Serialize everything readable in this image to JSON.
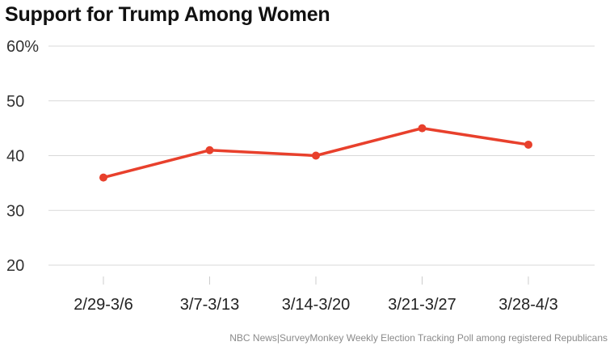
{
  "colors": {
    "line": "#e8402c",
    "grid": "#d9d9d9",
    "text": "#111111",
    "source": "#8a8a8a"
  },
  "chart_data": {
    "type": "line",
    "title": "Support for Trump Among Women",
    "source": "NBC News|SurveyMonkey Weekly Election Tracking Poll among registered Republicans",
    "categories": [
      "2/29-3/6",
      "3/7-3/13",
      "3/14-3/20",
      "3/21-3/27",
      "3/28-4/3"
    ],
    "series": [
      {
        "values": [
          36,
          41,
          40,
          45,
          42
        ]
      }
    ],
    "ylim": [
      20,
      60
    ],
    "yticks": [
      20,
      30,
      40,
      50,
      60
    ],
    "ytick_labels": [
      "20",
      "30",
      "40",
      "50",
      "60%"
    ],
    "grid": true,
    "legend": "none"
  }
}
